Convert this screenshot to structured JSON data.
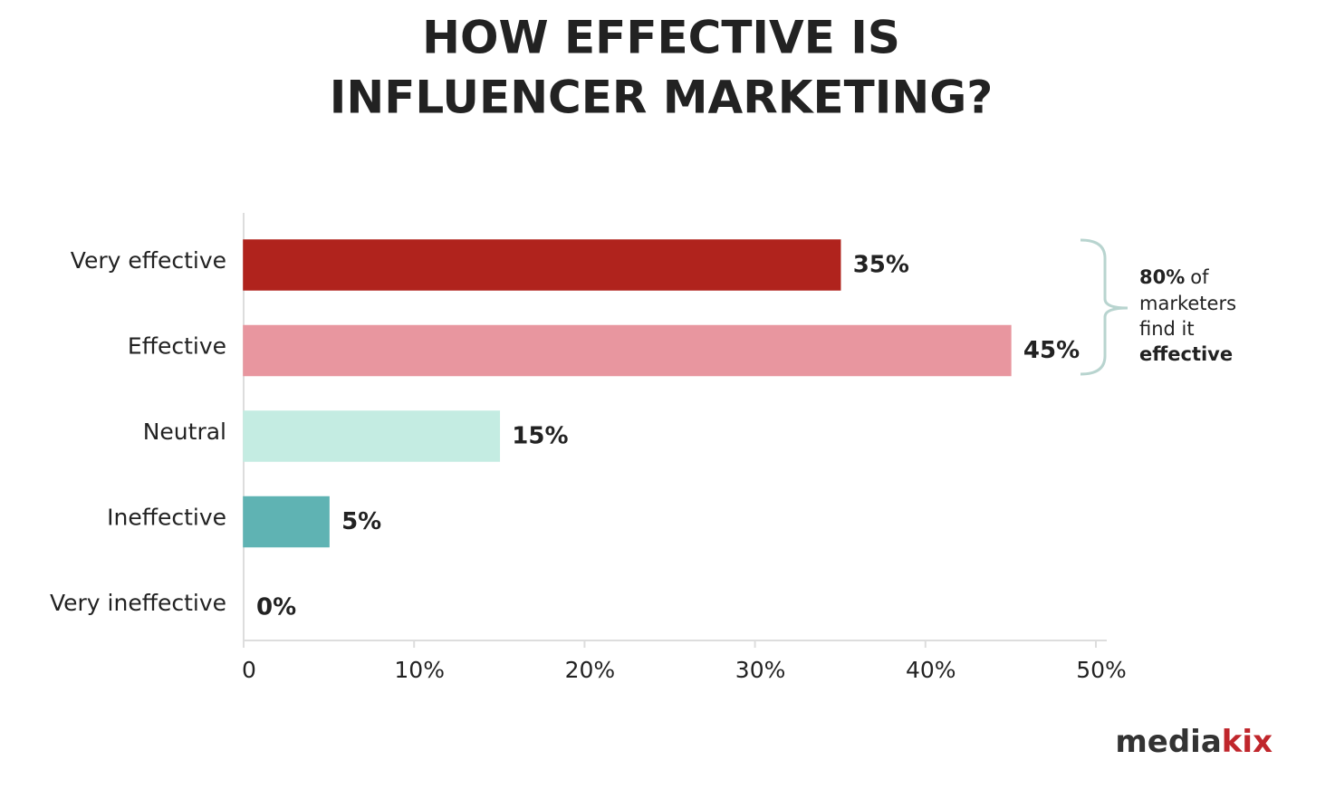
{
  "chart_data": {
    "type": "hbar",
    "title": [
      "HOW EFFECTIVE IS",
      "INFLUENCER MARKETING?"
    ],
    "categories": [
      "Very effective",
      "Effective",
      "Neutral",
      "Ineffective",
      "Very ineffective"
    ],
    "values": [
      35,
      45,
      15,
      5,
      0
    ],
    "value_labels": [
      "35%",
      "45%",
      "15%",
      "5%",
      "0%"
    ],
    "colors": [
      "#b0231d",
      "#e8969f",
      "#c4ece2",
      "#5fb3b3",
      "#666666"
    ],
    "xlim": [
      0,
      50
    ],
    "xticks": [
      0,
      {
        "value": 10,
        "label": "10%"
      },
      {
        "value": 20,
        "label": "20%"
      },
      {
        "value": 30,
        "label": "30%"
      },
      {
        "value": 40,
        "label": "40%"
      },
      {
        "value": 50,
        "label": "50%"
      }
    ],
    "grid": false,
    "annotation": [
      "80%",
      "of",
      "marketers",
      "find it",
      "effective"
    ],
    "logo": [
      "media",
      "kix"
    ]
  }
}
